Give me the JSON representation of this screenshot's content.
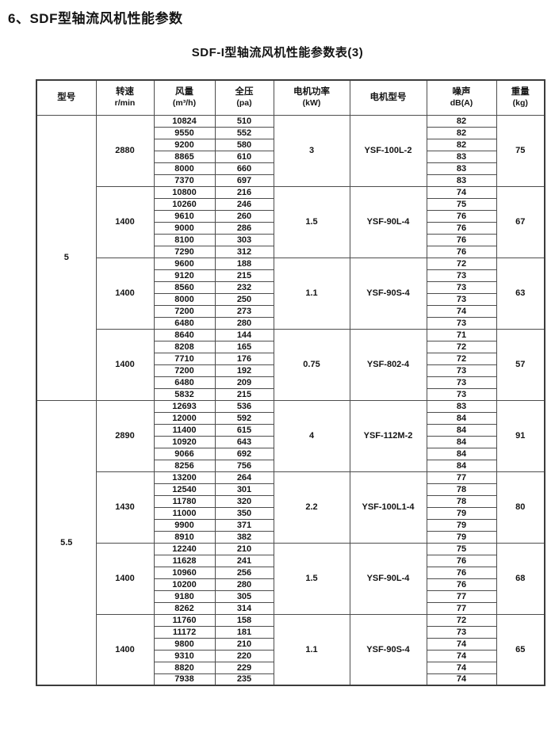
{
  "page": {
    "title": "6、SDF型轴流风机性能参数",
    "subtitle": "SDF-I型轴流风机性能参数表(3)"
  },
  "colors": {
    "background": "#ffffff",
    "text": "#141414",
    "border": "#4d4d4d"
  },
  "table": {
    "headers": [
      {
        "key": "model",
        "label": "型号",
        "unit": ""
      },
      {
        "key": "speed",
        "label": "转速",
        "unit": "r/min"
      },
      {
        "key": "flow",
        "label": "风量",
        "unit": "(m³/h)"
      },
      {
        "key": "pressure",
        "label": "全压",
        "unit": "(pa)"
      },
      {
        "key": "power",
        "label": "电机功率",
        "unit": "(kW)"
      },
      {
        "key": "motor",
        "label": "电机型号",
        "unit": ""
      },
      {
        "key": "noise",
        "label": "噪声",
        "unit": "dB(A)"
      },
      {
        "key": "weight",
        "label": "重量",
        "unit": "(kg)"
      }
    ],
    "models": [
      {
        "model": "5",
        "groups": [
          {
            "speed": "2880",
            "power": "3",
            "motor": "YSF-100L-2",
            "weight": "75",
            "rows": [
              [
                "10824",
                "510",
                "82"
              ],
              [
                "9550",
                "552",
                "82"
              ],
              [
                "9200",
                "580",
                "82"
              ],
              [
                "8865",
                "610",
                "83"
              ],
              [
                "8000",
                "660",
                "83"
              ],
              [
                "7370",
                "697",
                "83"
              ]
            ]
          },
          {
            "speed": "1400",
            "power": "1.5",
            "motor": "YSF-90L-4",
            "weight": "67",
            "rows": [
              [
                "10800",
                "216",
                "74"
              ],
              [
                "10260",
                "246",
                "75"
              ],
              [
                "9610",
                "260",
                "76"
              ],
              [
                "9000",
                "286",
                "76"
              ],
              [
                "8100",
                "303",
                "76"
              ],
              [
                "7290",
                "312",
                "76"
              ]
            ]
          },
          {
            "speed": "1400",
            "power": "1.1",
            "motor": "YSF-90S-4",
            "weight": "63",
            "rows": [
              [
                "9600",
                "188",
                "72"
              ],
              [
                "9120",
                "215",
                "73"
              ],
              [
                "8560",
                "232",
                "73"
              ],
              [
                "8000",
                "250",
                "73"
              ],
              [
                "7200",
                "273",
                "74"
              ],
              [
                "6480",
                "280",
                "73"
              ]
            ]
          },
          {
            "speed": "1400",
            "power": "0.75",
            "motor": "YSF-802-4",
            "weight": "57",
            "rows": [
              [
                "8640",
                "144",
                "71"
              ],
              [
                "8208",
                "165",
                "72"
              ],
              [
                "7710",
                "176",
                "72"
              ],
              [
                "7200",
                "192",
                "73"
              ],
              [
                "6480",
                "209",
                "73"
              ],
              [
                "5832",
                "215",
                "73"
              ]
            ]
          }
        ]
      },
      {
        "model": "5.5",
        "groups": [
          {
            "speed": "2890",
            "power": "4",
            "motor": "YSF-112M-2",
            "weight": "91",
            "rows": [
              [
                "12693",
                "536",
                "83"
              ],
              [
                "12000",
                "592",
                "84"
              ],
              [
                "11400",
                "615",
                "84"
              ],
              [
                "10920",
                "643",
                "84"
              ],
              [
                "9066",
                "692",
                "84"
              ],
              [
                "8256",
                "756",
                "84"
              ]
            ]
          },
          {
            "speed": "1430",
            "power": "2.2",
            "motor": "YSF-100L1-4",
            "weight": "80",
            "rows": [
              [
                "13200",
                "264",
                "77"
              ],
              [
                "12540",
                "301",
                "78"
              ],
              [
                "11780",
                "320",
                "78"
              ],
              [
                "11000",
                "350",
                "79"
              ],
              [
                "9900",
                "371",
                "79"
              ],
              [
                "8910",
                "382",
                "79"
              ]
            ]
          },
          {
            "speed": "1400",
            "power": "1.5",
            "motor": "YSF-90L-4",
            "weight": "68",
            "rows": [
              [
                "12240",
                "210",
                "75"
              ],
              [
                "11628",
                "241",
                "76"
              ],
              [
                "10960",
                "256",
                "76"
              ],
              [
                "10200",
                "280",
                "76"
              ],
              [
                "9180",
                "305",
                "77"
              ],
              [
                "8262",
                "314",
                "77"
              ]
            ]
          },
          {
            "speed": "1400",
            "power": "1.1",
            "motor": "YSF-90S-4",
            "weight": "65",
            "rows": [
              [
                "11760",
                "158",
                "72"
              ],
              [
                "11172",
                "181",
                "73"
              ],
              [
                "9800",
                "210",
                "74"
              ],
              [
                "9310",
                "220",
                "74"
              ],
              [
                "8820",
                "229",
                "74"
              ],
              [
                "7938",
                "235",
                "74"
              ]
            ]
          }
        ]
      }
    ]
  }
}
